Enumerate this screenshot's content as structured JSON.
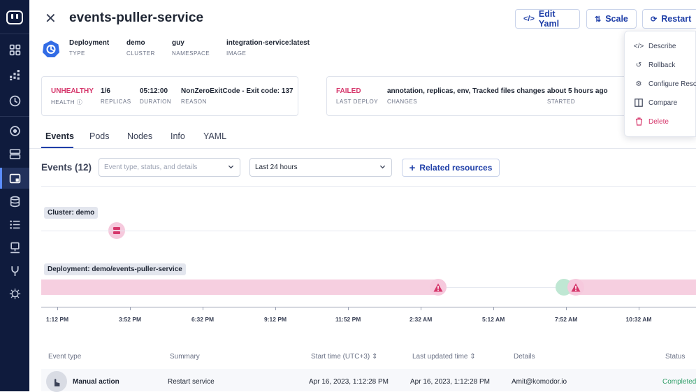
{
  "header": {
    "title": "events-puller-service",
    "buttons": {
      "edit_yaml": "Edit Yaml",
      "scale": "Scale",
      "restart": "Restart"
    }
  },
  "meta": [
    {
      "value": "Deployment",
      "label": "TYPE"
    },
    {
      "value": "demo",
      "label": "CLUSTER"
    },
    {
      "value": "guy",
      "label": "NAMESPACE"
    },
    {
      "value": "integration-service:latest",
      "label": "IMAGE"
    }
  ],
  "health_card": {
    "health": {
      "value": "UNHEALTHY",
      "label": "HEALTH"
    },
    "replicas": {
      "value": "1/6",
      "label": "REPLICAS"
    },
    "duration": {
      "value": "05:12:00",
      "label": "DURATION"
    },
    "reason": {
      "value": "NonZeroExitCode - Exit code: 137",
      "label": "REASON"
    }
  },
  "deploy_card": {
    "last_deploy": {
      "value": "FAILED",
      "label": "LAST DEPLOY"
    },
    "changes": {
      "value": "annotation, replicas, env, Tracked files changes",
      "label": "CHANGES"
    },
    "started": {
      "value": "about 5 hours ago",
      "label": "STARTED"
    }
  },
  "tabs": [
    "Events",
    "Pods",
    "Nodes",
    "Info",
    "YAML"
  ],
  "events": {
    "title": "Events (12)",
    "filter_placeholder": "Event type, status, and details",
    "time_range": "Last 24 hours",
    "related_button": "Related resources"
  },
  "timeline": {
    "row_labels": [
      "Cluster: demo",
      "Deployment: demo/events-puller-service"
    ],
    "ticks": [
      "1:12 PM",
      "3:52 PM",
      "6:32 PM",
      "9:12 PM",
      "11:52 PM",
      "2:32 AM",
      "5:12 AM",
      "7:52 AM",
      "10:32 AM"
    ],
    "colors": {
      "band": "#f6cfe0",
      "alert": "#d6366b"
    }
  },
  "table": {
    "headers": [
      "Event type",
      "Summary",
      "Start time (UTC+3)",
      "Last updated time",
      "Details",
      "Status"
    ],
    "rows": [
      [
        "Manual action",
        "Restart service",
        "Apr 16, 2023, 1:12:28 PM",
        "Apr 16, 2023, 1:12:28 PM",
        "Amit@komodor.io",
        "Completed"
      ]
    ]
  },
  "menu": {
    "items": [
      "Describe",
      "Rollback",
      "Configure Reso",
      "Compare",
      "Delete"
    ]
  }
}
